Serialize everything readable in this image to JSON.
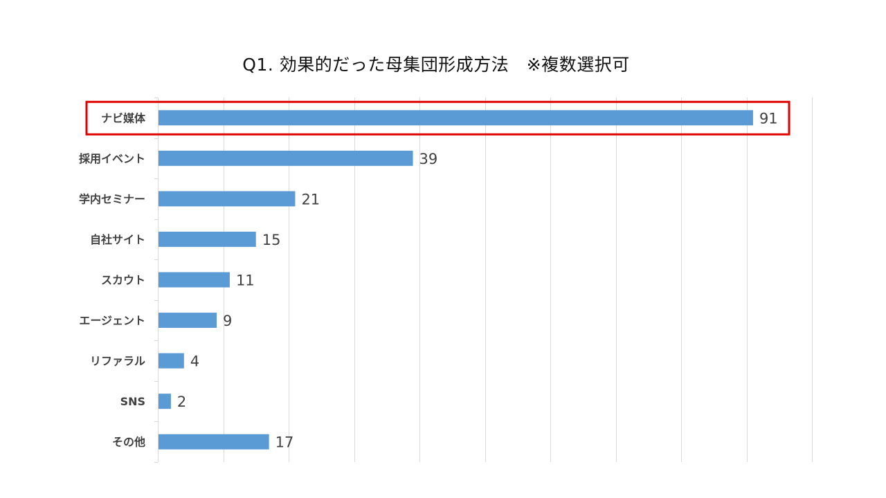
{
  "chart_data": {
    "type": "bar",
    "orientation": "horizontal",
    "title": "Q1. 効果的だった母集団形成方法　※複数選択可",
    "categories": [
      "ナビ媒体",
      "採用イベント",
      "学内セミナー",
      "自社サイト",
      "スカウト",
      "エージェント",
      "リファラル",
      "SNS",
      "その他"
    ],
    "values": [
      91,
      39,
      21,
      15,
      11,
      9,
      4,
      2,
      17
    ],
    "xlim": [
      0,
      100
    ],
    "grid": true,
    "legend": "none",
    "highlighted_category": "ナビ媒体",
    "bar_color": "#5b9bd5",
    "highlight_color": "#e00000",
    "grid_color": "#d9d9d9"
  }
}
